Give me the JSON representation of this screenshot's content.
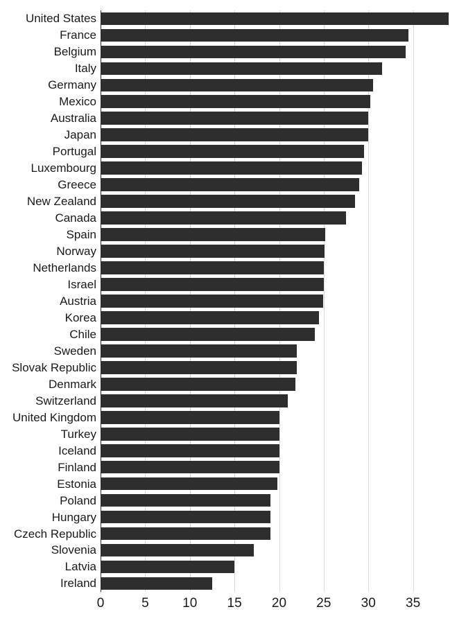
{
  "chart": {
    "type": "bar-horizontal",
    "background_color": "#ffffff",
    "bar_color": "#2e2e2e",
    "grid_color": "#d9d9d9",
    "axis_color": "#2e2e2e",
    "label_color": "#1a1a1a",
    "label_fontsize": 17,
    "tick_fontsize": 19,
    "xlim": [
      0,
      40
    ],
    "xtick_step": 5,
    "xticks": [
      0,
      5,
      10,
      15,
      20,
      25,
      30,
      35
    ],
    "bar_height_ratio": 0.78,
    "categories": [
      "United States",
      "France",
      "Belgium",
      "Italy",
      "Germany",
      "Mexico",
      "Australia",
      "Japan",
      "Portugal",
      "Luxembourg",
      "Greece",
      "New Zealand",
      "Canada",
      "Spain",
      "Norway",
      "Netherlands",
      "Israel",
      "Austria",
      "Korea",
      "Chile",
      "Sweden",
      "Slovak Republic",
      "Denmark",
      "Switzerland",
      "United Kingdom",
      "Turkey",
      "Iceland",
      "Finland",
      "Estonia",
      "Poland",
      "Hungary",
      "Czech Republic",
      "Slovenia",
      "Latvia",
      "Ireland"
    ],
    "values": [
      39.0,
      34.5,
      34.2,
      31.5,
      30.5,
      30.2,
      30.0,
      30.0,
      29.5,
      29.3,
      29.0,
      28.5,
      27.5,
      25.2,
      25.1,
      25.0,
      25.0,
      24.9,
      24.5,
      24.0,
      22.0,
      22.0,
      21.8,
      21.0,
      20.0,
      20.0,
      20.0,
      20.0,
      19.8,
      19.0,
      19.0,
      19.0,
      17.2,
      15.0,
      12.5
    ]
  }
}
